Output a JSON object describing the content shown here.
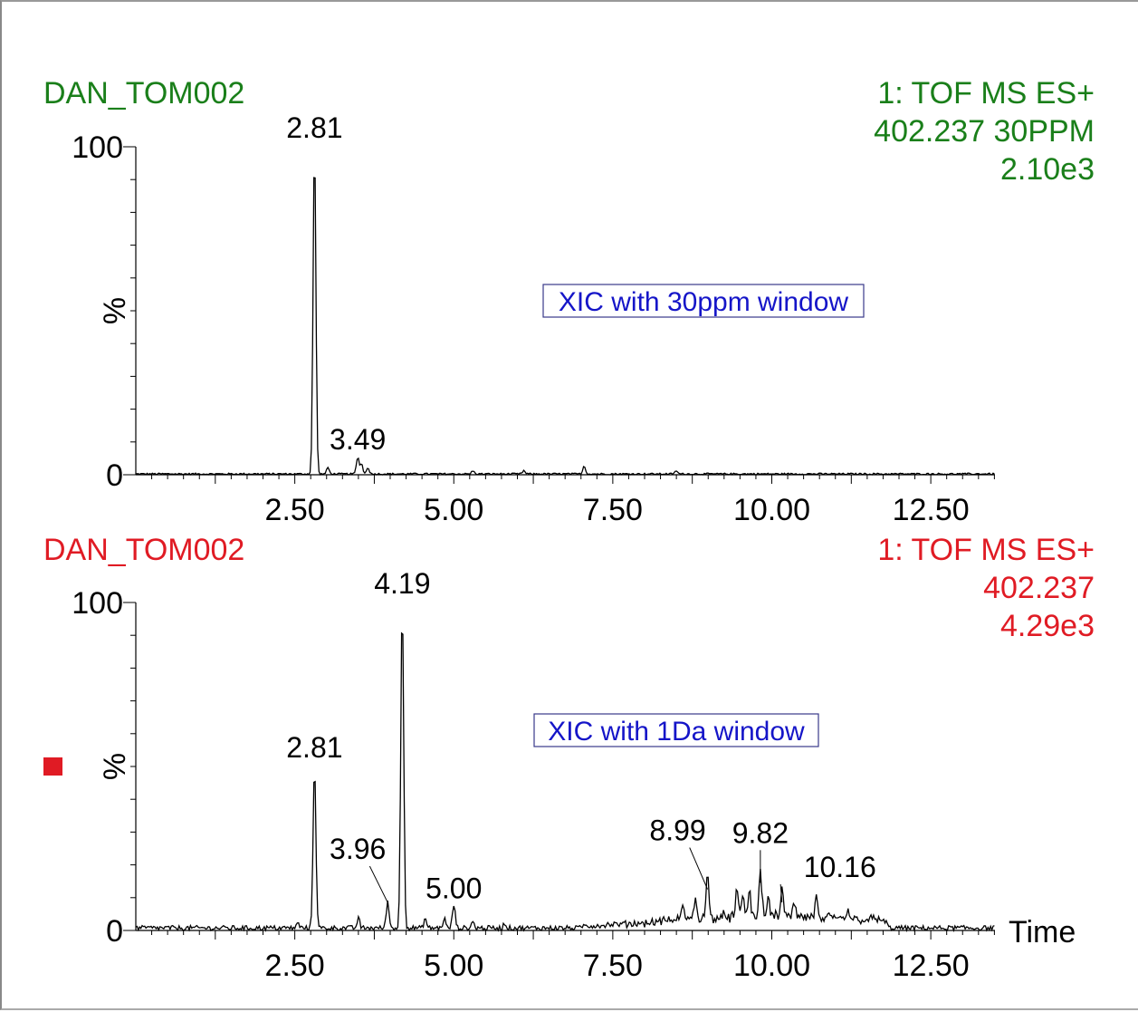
{
  "colors": {
    "panel1_header": "#1a7f1a",
    "panel2_header": "#e01b24",
    "annotation_text": "#1515c8",
    "trace": "#000000",
    "marker": "#e01b24"
  },
  "marker_icon": "red-square-marker",
  "chart_data": [
    {
      "type": "line",
      "title": "DAN_TOM002",
      "header_right": [
        "1: TOF MS ES+",
        "402.237 30PPM",
        "2.10e3"
      ],
      "annotation": "XIC with 30ppm window",
      "ylabel": "%",
      "xlabel": "",
      "xlim": [
        0,
        13.5
      ],
      "ylim": [
        0,
        100
      ],
      "ytick_labels": [
        "0",
        "100"
      ],
      "xtick_labels": [
        "2.50",
        "5.00",
        "7.50",
        "10.00",
        "12.50"
      ],
      "xticks": [
        2.5,
        5.0,
        7.5,
        10.0,
        12.5
      ],
      "peaks": [
        {
          "rt": 2.81,
          "label": "2.81",
          "height": 100
        },
        {
          "rt": 3.49,
          "label": "3.49",
          "height": 5
        }
      ],
      "minor_peaks": [
        [
          3.02,
          2
        ],
        [
          3.55,
          3
        ],
        [
          3.65,
          2
        ],
        [
          7.05,
          2.5
        ],
        [
          5.3,
          1
        ],
        [
          6.1,
          1
        ],
        [
          8.5,
          1
        ]
      ],
      "noise_level": 0.5,
      "noise_end": 13.5
    },
    {
      "type": "line",
      "title": "DAN_TOM002",
      "header_right": [
        "1: TOF MS ES+",
        "402.237",
        "4.29e3"
      ],
      "annotation": "XIC with 1Da window",
      "ylabel": "%",
      "xlabel": "Time",
      "xlim": [
        0,
        13.5
      ],
      "ylim": [
        0,
        100
      ],
      "ytick_labels": [
        "0",
        "100"
      ],
      "xtick_labels": [
        "2.50",
        "5.00",
        "7.50",
        "10.00",
        "12.50"
      ],
      "xticks": [
        2.5,
        5.0,
        7.5,
        10.0,
        12.5
      ],
      "peaks": [
        {
          "rt": 2.81,
          "label": "2.81",
          "height": 50
        },
        {
          "rt": 3.96,
          "label": "3.96",
          "height": 8
        },
        {
          "rt": 4.19,
          "label": "4.19",
          "height": 100
        },
        {
          "rt": 5.0,
          "label": "5.00",
          "height": 7
        },
        {
          "rt": 8.99,
          "label": "8.99",
          "height": 12
        },
        {
          "rt": 9.82,
          "label": "9.82",
          "height": 14
        },
        {
          "rt": 10.16,
          "label": "10.16",
          "height": 8
        }
      ],
      "minor_peaks": [
        [
          2.55,
          1.5
        ],
        [
          3.5,
          3
        ],
        [
          4.55,
          3
        ],
        [
          4.85,
          3
        ],
        [
          5.3,
          2
        ],
        [
          5.8,
          1.5
        ],
        [
          8.6,
          4
        ],
        [
          8.8,
          6
        ],
        [
          9.45,
          8
        ],
        [
          9.55,
          7
        ],
        [
          9.65,
          8
        ],
        [
          9.95,
          6
        ],
        [
          10.35,
          5
        ],
        [
          10.7,
          6
        ],
        [
          11.2,
          3
        ]
      ],
      "noise_level": 1.5,
      "hump": [
        [
          7.0,
          0.5
        ],
        [
          8.0,
          1.5
        ],
        [
          9.0,
          3.5
        ],
        [
          10.0,
          3.5
        ],
        [
          11.0,
          3.0
        ],
        [
          11.75,
          2.5
        ],
        [
          11.85,
          0.3
        ]
      ],
      "noise_end": 13.5
    }
  ]
}
